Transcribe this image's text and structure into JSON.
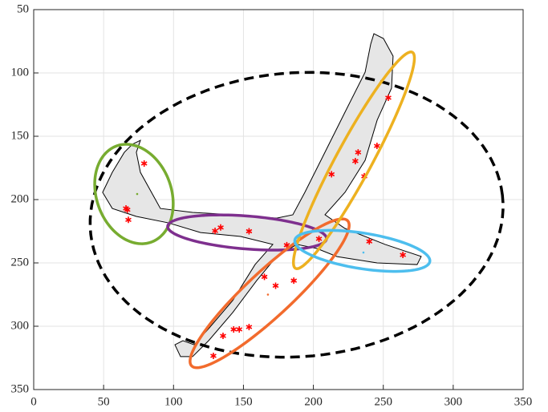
{
  "chart_data": {
    "type": "scatter",
    "xlim": [
      0,
      350
    ],
    "xticks": [
      0,
      50,
      100,
      150,
      200,
      250,
      300,
      350
    ],
    "ylim": [
      50,
      350
    ],
    "yticks": [
      50,
      100,
      150,
      200,
      250,
      300,
      350
    ],
    "y_reversed": true,
    "grid": true,
    "outline": {
      "color": "#e6e6e6",
      "x": [
        243.3,
        250.1,
        257,
        255.9,
        245.6,
        237,
        222.6,
        208.3,
        222.6,
        251.3,
        277.1,
        274.2,
        245.6,
        216.9,
        202.5,
        188.2,
        173.8,
        159.5,
        142.3,
        125.1,
        113.6,
        105,
        101,
        106.7,
        114.7,
        125.1,
        142.3,
        158.3,
        171,
        148,
        119.3,
        96.4,
        73.4,
        56.2,
        49.3,
        56.2,
        64.8,
        70.6,
        76.3,
        73.4,
        76.3,
        90.6,
        113.6,
        142.3,
        173.8,
        185.3,
        193.9,
        205.4,
        222.6,
        237,
        241
      ],
      "y": [
        69,
        72.8,
        86.7,
        112,
        137.3,
        169,
        194.3,
        212,
        222.8,
        235.4,
        244.9,
        251.3,
        250,
        245,
        238.6,
        235.4,
        244.9,
        263.9,
        289.2,
        311.4,
        324,
        324,
        314.6,
        311.4,
        314.6,
        301.9,
        279.7,
        251.3,
        235.4,
        229.1,
        226,
        218.4,
        213.3,
        207,
        194.3,
        178.5,
        162.7,
        156.3,
        153.2,
        162.7,
        178.5,
        207,
        210.1,
        212,
        214.6,
        212,
        194.3,
        169,
        131,
        99.4,
        77.2
      ]
    },
    "points": {
      "color": "#ff0000",
      "x": [
        79,
        67,
        66,
        67.7,
        129.7,
        133.7,
        154,
        181,
        204,
        240,
        264,
        165,
        173,
        186,
        135.4,
        143,
        147,
        154,
        128.5,
        213,
        232,
        230,
        236.4,
        245.5,
        253.6
      ],
      "y": [
        171.5,
        208,
        207,
        216,
        224.7,
        222,
        225,
        236,
        231,
        233,
        243.7,
        261,
        268,
        264,
        307.6,
        302.5,
        302.5,
        300.6,
        323.4,
        180,
        162.7,
        169.6,
        181.6,
        157.6,
        119.6
      ]
    },
    "centroids": {
      "colors": [
        "#77ac30",
        "#f26b2d",
        "#4dbeee"
      ],
      "x": [
        74,
        167.5,
        235.8
      ],
      "y": [
        195.6,
        275,
        241.8
      ]
    },
    "ellipses": [
      {
        "color": "#000000",
        "dashed": true,
        "cx": 188,
        "cy": 212,
        "a": 148,
        "b": 112,
        "angle": 6
      },
      {
        "color": "#77ac30",
        "dashed": false,
        "cx": 71.7,
        "cy": 195.6,
        "a": 40,
        "b": 27,
        "angle": -75
      },
      {
        "color": "#7e2f8e",
        "dashed": false,
        "cx": 152.6,
        "cy": 226,
        "a": 57,
        "b": 13,
        "angle": -5
      },
      {
        "color": "#f26b2d",
        "dashed": false,
        "cx": 168.7,
        "cy": 274,
        "a": 80,
        "b": 17,
        "angle": 46
      },
      {
        "color": "#edb120",
        "dashed": false,
        "cx": 229,
        "cy": 169,
        "a": 95,
        "b": 13,
        "angle": 64
      },
      {
        "color": "#4dbeee",
        "dashed": false,
        "cx": 235,
        "cy": 240.5,
        "a": 49,
        "b": 14,
        "angle": -10
      }
    ]
  }
}
